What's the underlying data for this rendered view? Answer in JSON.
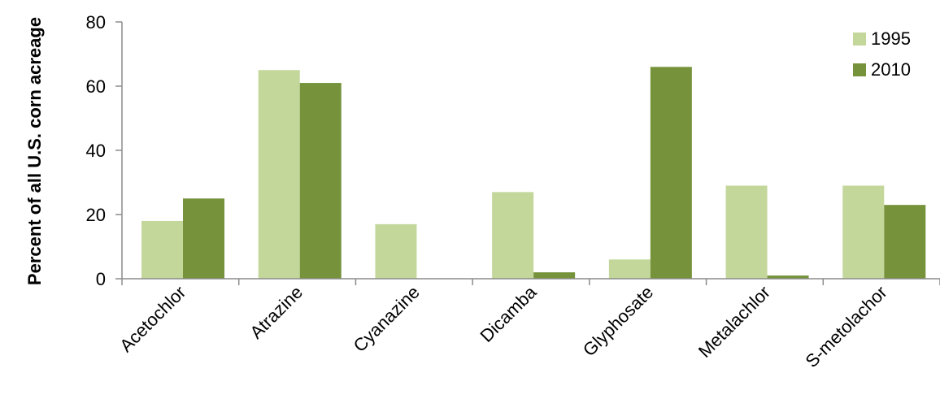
{
  "chart_data": {
    "type": "bar",
    "title": "",
    "xlabel": "",
    "ylabel": "Percent of all U.S. corn acreage",
    "ylim": [
      0,
      80
    ],
    "yticks": [
      0,
      20,
      40,
      60,
      80
    ],
    "grid": false,
    "legend_position": "top-right",
    "categories": [
      "Acetochlor",
      "Atrazine",
      "Cyanazine",
      "Dicamba",
      "Glyphosate",
      "Metalachlor",
      "S-metolachor"
    ],
    "series": [
      {
        "name": "1995",
        "color": "#c4d79b",
        "values": [
          18,
          65,
          17,
          27,
          6,
          29,
          29
        ]
      },
      {
        "name": "2010",
        "color": "#76933c",
        "values": [
          25,
          61,
          0,
          2,
          66,
          1,
          23
        ]
      }
    ]
  }
}
